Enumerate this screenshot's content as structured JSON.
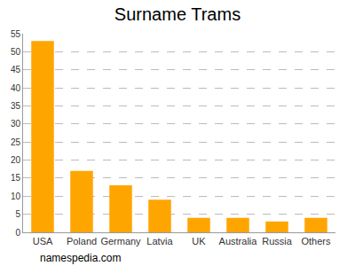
{
  "chart_data": {
    "type": "bar",
    "title": "Surname Trams",
    "categories": [
      "USA",
      "Poland",
      "Germany",
      "Latvia",
      "UK",
      "Australia",
      "Russia",
      "Others"
    ],
    "values": [
      53,
      17,
      13,
      9,
      4,
      4,
      3,
      4
    ],
    "color": "#ffa500",
    "ylim": [
      0,
      55
    ],
    "yticks": [
      0,
      5,
      10,
      15,
      20,
      25,
      30,
      35,
      40,
      45,
      50,
      55
    ],
    "grid": true,
    "annotation": "namespedia.com"
  }
}
